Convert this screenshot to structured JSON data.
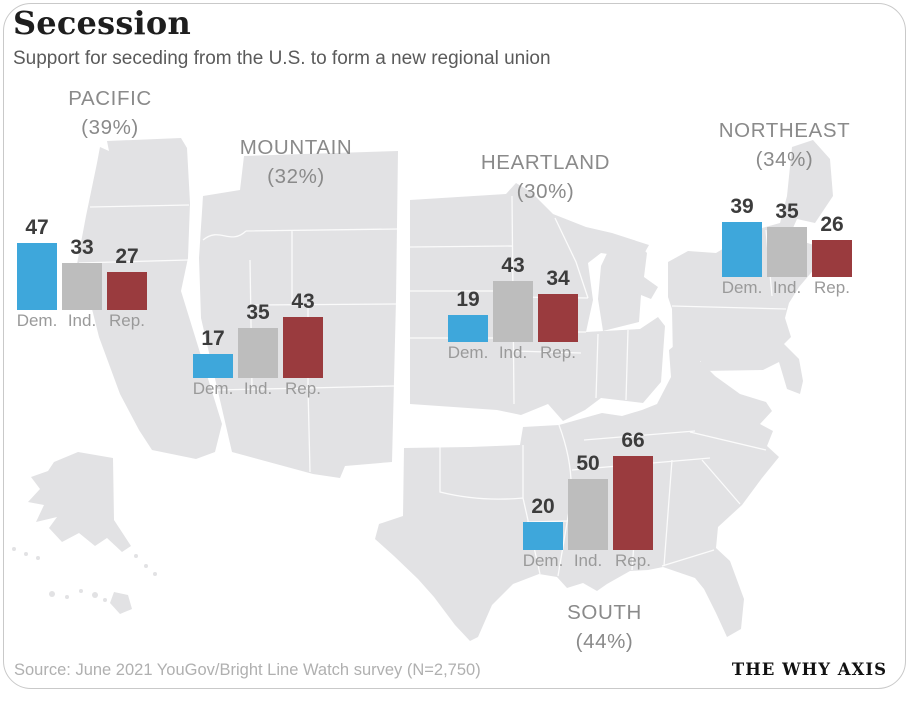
{
  "card": {
    "title": "Secession",
    "subtitle": "Support for seceding from the U.S. to form a new regional union",
    "source": "Source: June 2021 YouGov/Bright Line Watch survey (N=2,750)",
    "brand": "THE WHY AXIS"
  },
  "colors": {
    "dem_bar": "#3EA7DB",
    "ind_bar": "#BDBDBD",
    "rep_bar": "#9A3B3E",
    "map_fill": "#E2E2E4",
    "value_label": "#3C3C3C",
    "region_label": "#8A8A8A",
    "party_label": "#9A9A9A"
  },
  "chart_data": {
    "type": "bar",
    "title": "Secession",
    "subtitle": "Support for seceding from the U.S. to form a new regional union",
    "unit": "percent",
    "party_categories": [
      "Dem.",
      "Ind.",
      "Rep."
    ],
    "layout": "five small-multiple 3-bar groups placed over a U.S. map split into regional blobs",
    "regions": [
      {
        "name": "PACIFIC",
        "support_label": "(39%)",
        "overall_pct": 39,
        "bars": [
          {
            "party": "Dem.",
            "value": 47
          },
          {
            "party": "Ind.",
            "value": 33
          },
          {
            "party": "Rep.",
            "value": 27
          }
        ]
      },
      {
        "name": "MOUNTAIN",
        "support_label": "(32%)",
        "overall_pct": 32,
        "bars": [
          {
            "party": "Dem.",
            "value": 17
          },
          {
            "party": "Ind.",
            "value": 35
          },
          {
            "party": "Rep.",
            "value": 43
          }
        ]
      },
      {
        "name": "HEARTLAND",
        "support_label": "(30%)",
        "overall_pct": 30,
        "bars": [
          {
            "party": "Dem.",
            "value": 19
          },
          {
            "party": "Ind.",
            "value": 43
          },
          {
            "party": "Rep.",
            "value": 34
          }
        ]
      },
      {
        "name": "NORTHEAST",
        "support_label": "(34%)",
        "overall_pct": 34,
        "bars": [
          {
            "party": "Dem.",
            "value": 39
          },
          {
            "party": "Ind.",
            "value": 35
          },
          {
            "party": "Rep.",
            "value": 26
          }
        ]
      },
      {
        "name": "SOUTH",
        "support_label": "(44%)",
        "overall_pct": 44,
        "bars": [
          {
            "party": "Dem.",
            "value": 20
          },
          {
            "party": "Ind.",
            "value": 50
          },
          {
            "party": "Rep.",
            "value": 66
          }
        ]
      }
    ]
  }
}
